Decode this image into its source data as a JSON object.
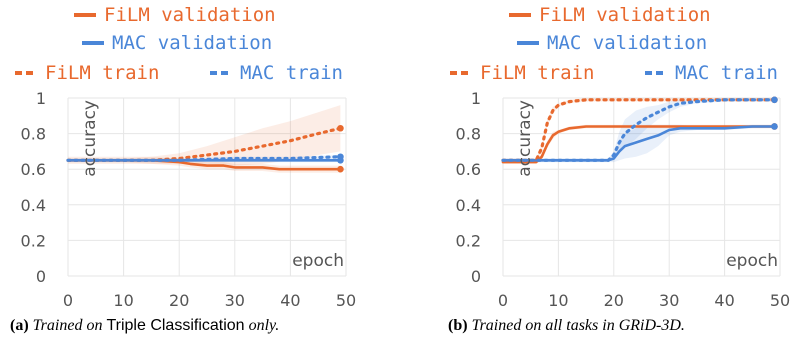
{
  "colors": {
    "film": "#e8692e",
    "mac": "#4a86d8",
    "grid": "#e6e6e6",
    "text": "#555555"
  },
  "chart_data": [
    {
      "type": "line",
      "xlabel": "epoch",
      "ylabel": "accuracy",
      "xlim": [
        0,
        50
      ],
      "ylim": [
        0,
        1
      ],
      "xticks": [
        "0",
        "10",
        "20",
        "30",
        "40",
        "50"
      ],
      "yticks": [
        "0",
        "0.2",
        "0.4",
        "0.6",
        "0.8",
        "1"
      ],
      "grid": true,
      "legend": [
        "FiLM validation",
        "MAC validation",
        "FiLM train",
        "MAC train"
      ],
      "caption": {
        "label": "(a)",
        "pre": "Trained on ",
        "task": "Triple Classification",
        "post": " only."
      },
      "series": [
        {
          "name": "FiLM validation",
          "color": "film",
          "style": "solid",
          "x": [
            0,
            5,
            10,
            15,
            20,
            22,
            25,
            28,
            30,
            32,
            35,
            38,
            40,
            42,
            45,
            48,
            49
          ],
          "y": [
            0.65,
            0.65,
            0.65,
            0.65,
            0.64,
            0.63,
            0.62,
            0.62,
            0.61,
            0.61,
            0.61,
            0.6,
            0.6,
            0.6,
            0.6,
            0.6,
            0.6
          ],
          "band": [
            0.02,
            0.02,
            0.02,
            0.02,
            0.02,
            0.02,
            0.02,
            0.02,
            0.02,
            0.02,
            0.02,
            0.02,
            0.02,
            0.02,
            0.02,
            0.02,
            0.02
          ]
        },
        {
          "name": "MAC validation",
          "color": "mac",
          "style": "solid",
          "x": [
            0,
            10,
            20,
            30,
            40,
            49
          ],
          "y": [
            0.65,
            0.65,
            0.65,
            0.65,
            0.65,
            0.65
          ],
          "band": [
            0.01,
            0.01,
            0.01,
            0.01,
            0.01,
            0.01
          ]
        },
        {
          "name": "FiLM train",
          "color": "film",
          "style": "dotted",
          "x": [
            0,
            5,
            10,
            15,
            20,
            25,
            30,
            35,
            40,
            45,
            49
          ],
          "y": [
            0.65,
            0.65,
            0.65,
            0.65,
            0.66,
            0.68,
            0.7,
            0.73,
            0.76,
            0.8,
            0.83
          ],
          "band": [
            0.01,
            0.01,
            0.01,
            0.02,
            0.03,
            0.05,
            0.08,
            0.1,
            0.11,
            0.12,
            0.13
          ]
        },
        {
          "name": "MAC train",
          "color": "mac",
          "style": "dotted",
          "x": [
            0,
            10,
            20,
            30,
            40,
            49
          ],
          "y": [
            0.65,
            0.65,
            0.65,
            0.66,
            0.66,
            0.67
          ],
          "band": [
            0.01,
            0.01,
            0.01,
            0.01,
            0.01,
            0.01
          ]
        }
      ]
    },
    {
      "type": "line",
      "xlabel": "epoch",
      "ylabel": "accuracy",
      "xlim": [
        0,
        50
      ],
      "ylim": [
        0,
        1
      ],
      "xticks": [
        "0",
        "10",
        "20",
        "30",
        "40",
        "50"
      ],
      "yticks": [
        "0",
        "0.2",
        "0.4",
        "0.6",
        "0.8",
        "1"
      ],
      "grid": true,
      "legend": [
        "FiLM validation",
        "MAC validation",
        "FiLM train",
        "MAC train"
      ],
      "caption": {
        "label": "(b)",
        "pre": "Trained on all tasks in GRiD-3D.",
        "task": "",
        "post": ""
      },
      "series": [
        {
          "name": "FiLM validation",
          "color": "film",
          "style": "solid",
          "x": [
            0,
            6,
            7,
            8,
            9,
            10,
            12,
            15,
            20,
            25,
            30,
            35,
            40,
            45,
            49
          ],
          "y": [
            0.64,
            0.64,
            0.67,
            0.74,
            0.79,
            0.81,
            0.83,
            0.84,
            0.84,
            0.84,
            0.84,
            0.84,
            0.84,
            0.84,
            0.84
          ],
          "band": [
            0.01,
            0.01,
            0.02,
            0.02,
            0.02,
            0.01,
            0.01,
            0.01,
            0.01,
            0.01,
            0.01,
            0.01,
            0.01,
            0.01,
            0.01
          ]
        },
        {
          "name": "MAC validation",
          "color": "mac",
          "style": "solid",
          "x": [
            0,
            10,
            19,
            20,
            21,
            22,
            24,
            26,
            28,
            30,
            32,
            35,
            40,
            45,
            49
          ],
          "y": [
            0.65,
            0.65,
            0.65,
            0.66,
            0.7,
            0.73,
            0.75,
            0.77,
            0.79,
            0.82,
            0.83,
            0.83,
            0.83,
            0.84,
            0.84
          ],
          "band": [
            0.01,
            0.01,
            0.01,
            0.02,
            0.05,
            0.07,
            0.08,
            0.08,
            0.06,
            0.03,
            0.02,
            0.01,
            0.01,
            0.01,
            0.01
          ]
        },
        {
          "name": "FiLM train",
          "color": "film",
          "style": "dotted",
          "x": [
            0,
            6,
            7,
            8,
            9,
            10,
            12,
            15,
            20,
            30,
            40,
            49
          ],
          "y": [
            0.65,
            0.65,
            0.72,
            0.86,
            0.93,
            0.96,
            0.98,
            0.99,
            0.99,
            0.99,
            0.99,
            0.99
          ],
          "band": [
            0.01,
            0.01,
            0.02,
            0.02,
            0.02,
            0.01,
            0.01,
            0.01,
            0.01,
            0.01,
            0.01,
            0.01
          ]
        },
        {
          "name": "MAC train",
          "color": "mac",
          "style": "dotted",
          "x": [
            0,
            10,
            19,
            20,
            21,
            22,
            24,
            26,
            28,
            30,
            32,
            35,
            40,
            45,
            49
          ],
          "y": [
            0.65,
            0.65,
            0.65,
            0.68,
            0.75,
            0.8,
            0.85,
            0.89,
            0.92,
            0.95,
            0.97,
            0.98,
            0.99,
            0.99,
            0.99
          ],
          "band": [
            0.01,
            0.01,
            0.01,
            0.02,
            0.06,
            0.08,
            0.08,
            0.06,
            0.04,
            0.03,
            0.02,
            0.01,
            0.01,
            0.01,
            0.01
          ]
        }
      ]
    }
  ]
}
